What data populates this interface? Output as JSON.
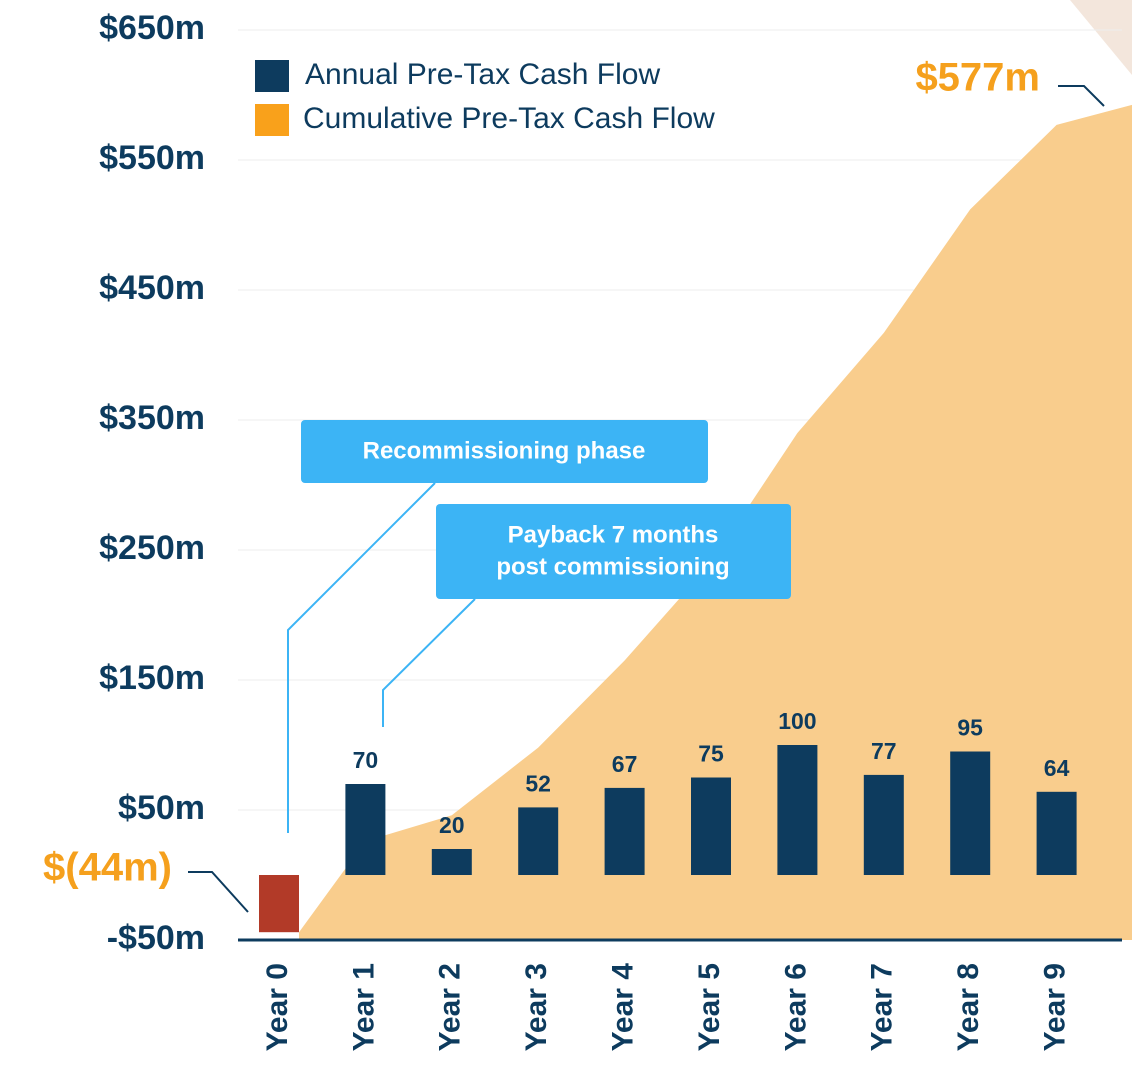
{
  "chart_data": {
    "type": "bar",
    "categories": [
      "Year 0",
      "Year 1",
      "Year 2",
      "Year 3",
      "Year 4",
      "Year 5",
      "Year 6",
      "Year 7",
      "Year 8",
      "Year 9"
    ],
    "series": [
      {
        "name": "Annual Pre-Tax Cash Flow",
        "type": "bar",
        "color": "#0d3b5e",
        "negative_color": "#b23a28",
        "values": [
          -44,
          70,
          20,
          52,
          67,
          75,
          100,
          77,
          95,
          64
        ]
      },
      {
        "name": "Cumulative Pre-Tax Cash Flow",
        "type": "area",
        "color": "#f9a11b",
        "fill": "#f9cd8d",
        "values": [
          -44,
          26,
          46,
          98,
          165,
          240,
          340,
          417,
          512,
          577
        ]
      }
    ],
    "ylim": [
      -50,
      650
    ],
    "yticks": [
      {
        "value": -50,
        "label": "-$50m"
      },
      {
        "value": 50,
        "label": "$50m"
      },
      {
        "value": 150,
        "label": "$150m"
      },
      {
        "value": 250,
        "label": "$250m"
      },
      {
        "value": 350,
        "label": "$350m"
      },
      {
        "value": 450,
        "label": "$450m"
      },
      {
        "value": 550,
        "label": "$550m"
      },
      {
        "value": 650,
        "label": "$650m"
      }
    ],
    "grid": true,
    "legend": "top-left",
    "annotations": {
      "start": "$(44m)",
      "end": "$577m",
      "recommissioning": "Recommissioning phase",
      "payback": [
        "Payback 7 months",
        "post commissioning"
      ]
    }
  }
}
